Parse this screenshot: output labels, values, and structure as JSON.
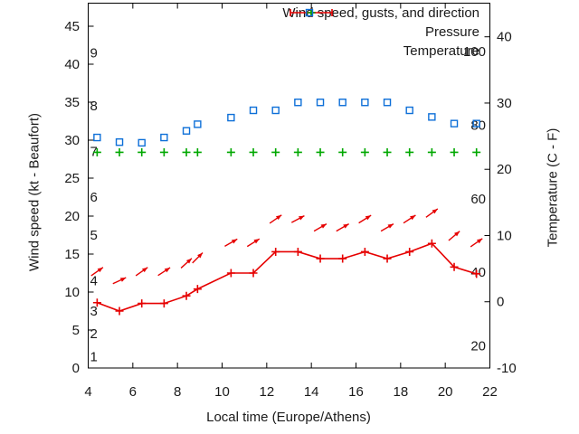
{
  "colors": {
    "wind": "#e60000",
    "pressure": "#00a800",
    "temperature": "#0d6fd8",
    "axis": "#000000",
    "text": "#1a1a1a",
    "background": "#ffffff"
  },
  "legend": {
    "items": [
      {
        "id": "wind",
        "label": "Wind speed, gusts, and direction",
        "marker": "errorbar-line-plus"
      },
      {
        "id": "pressure",
        "label": "Pressure",
        "marker": "plus"
      },
      {
        "id": "temperature",
        "label": "Temperature",
        "marker": "open-square"
      }
    ]
  },
  "axes": {
    "x": {
      "title": "Local time (Europe/Athens)",
      "min": 4,
      "max": 22,
      "ticks": [
        4,
        6,
        8,
        10,
        12,
        14,
        16,
        18,
        20,
        22
      ]
    },
    "y_left": {
      "title": "Wind speed (kt - Beaufort)",
      "min": 0,
      "ticks": [
        0,
        5,
        10,
        15,
        20,
        25,
        30,
        35,
        40,
        45
      ],
      "beaufort_labels": [
        {
          "text": "1",
          "kt": 1.5
        },
        {
          "text": "2",
          "kt": 4.5
        },
        {
          "text": "3",
          "kt": 7.5
        },
        {
          "text": "4",
          "kt": 11.5
        },
        {
          "text": "5",
          "kt": 17.5
        },
        {
          "text": "6",
          "kt": 22.5
        },
        {
          "text": "7",
          "kt": 28.5
        },
        {
          "text": "8",
          "kt": 34.5
        },
        {
          "text": "9",
          "kt": 41.5
        }
      ]
    },
    "y_right": {
      "title": "Temperature (C - F)",
      "min_c": -10,
      "ticks_c": [
        -10,
        0,
        10,
        20,
        30,
        40
      ],
      "fahrenheit_labels": [
        20,
        40,
        60,
        80,
        100
      ]
    }
  },
  "chart_data": {
    "type": "line",
    "title": "",
    "xlabel": "Local time (Europe/Athens)",
    "x_range": [
      4,
      22
    ],
    "y_left_range_kt": [
      0,
      48
    ],
    "y_right_range_c": [
      -10,
      45
    ],
    "grid": false,
    "legend_position": "top-right-inside",
    "x_hours": [
      4.4,
      5.4,
      6.4,
      7.4,
      8.4,
      8.9,
      10.4,
      11.4,
      12.4,
      13.4,
      14.4,
      15.4,
      16.4,
      17.4,
      18.4,
      19.4,
      20.4,
      21.4
    ],
    "series": [
      {
        "name": "Wind speed, gusts, and direction",
        "axis": "left",
        "style": "line-plus-markers-with-gust-arrows",
        "wind_kt": [
          8.6,
          7.5,
          8.5,
          8.5,
          9.5,
          10.4,
          12.5,
          12.5,
          15.3,
          15.3,
          14.4,
          14.4,
          15.3,
          14.4,
          15.3,
          16.4,
          13.3,
          12.4
        ],
        "gust_kt": [
          12.7,
          11.5,
          12.7,
          12.7,
          13.8,
          14.5,
          16.5,
          16.5,
          19.6,
          19.6,
          18.5,
          18.5,
          19.6,
          18.5,
          19.6,
          20.4,
          17.4,
          16.5
        ],
        "arrow_angle_deg": [
          35,
          25,
          35,
          33,
          42,
          45,
          30,
          32,
          35,
          28,
          30,
          30,
          32,
          30,
          33,
          36,
          40,
          35
        ]
      },
      {
        "name": "Pressure",
        "axis": "left",
        "style": "plus-points-flat",
        "flat_level_kt_scale": 28.4
      },
      {
        "name": "Temperature",
        "axis": "right",
        "style": "open-square-points",
        "celsius": [
          24.8,
          24.1,
          24.0,
          24.8,
          25.8,
          26.8,
          27.8,
          28.9,
          28.9,
          30.1,
          30.1,
          30.1,
          30.1,
          30.1,
          28.9,
          27.9,
          26.9,
          26.9
        ]
      }
    ]
  }
}
